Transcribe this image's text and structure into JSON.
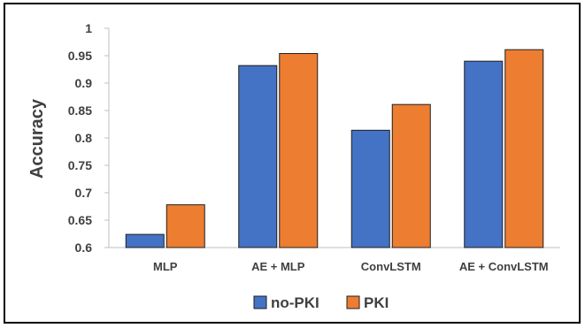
{
  "chart_data": {
    "type": "bar",
    "title": "",
    "xlabel": "",
    "ylabel": "Accuracy",
    "categories": [
      "MLP",
      "AE + MLP",
      "ConvLSTM",
      "AE + ConvLSTM"
    ],
    "series": [
      {
        "name": "no-PKI",
        "color": "#4472C4",
        "values": [
          0.624,
          0.932,
          0.814,
          0.94
        ]
      },
      {
        "name": "PKI",
        "color": "#ED7D31",
        "values": [
          0.678,
          0.954,
          0.861,
          0.961
        ]
      }
    ],
    "ylim": [
      0.6,
      1
    ],
    "yticks": [
      "0.6",
      "0.65",
      "0.7",
      "0.75",
      "0.8",
      "0.85",
      "0.9",
      "0.95",
      "1"
    ],
    "grid": false,
    "legend_position": "bottom"
  }
}
